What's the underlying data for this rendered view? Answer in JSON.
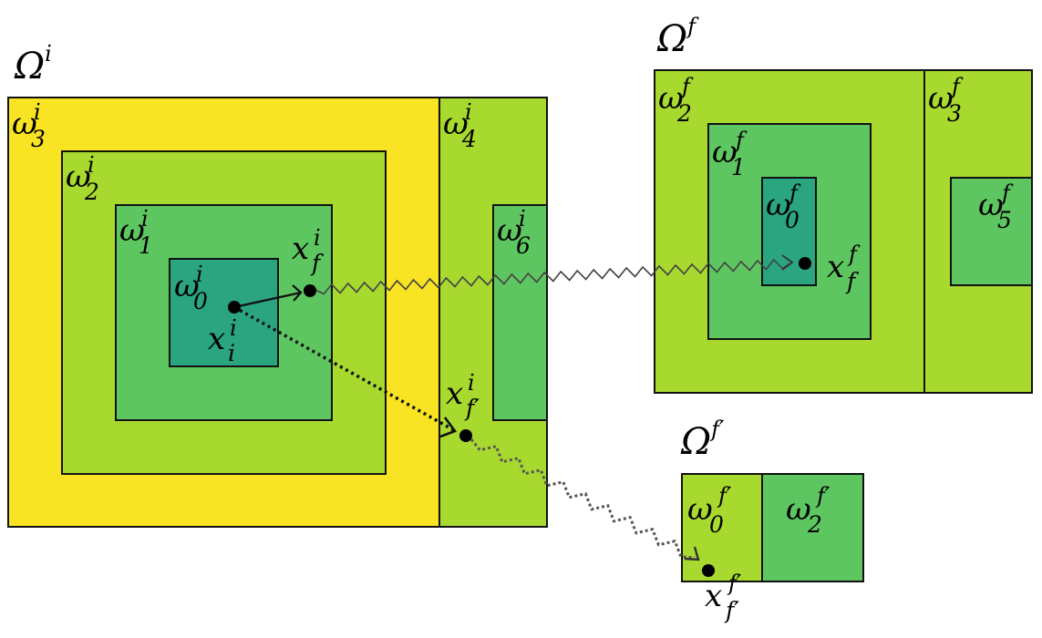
{
  "colors": {
    "yellow": "#f9e424",
    "light_green": "#a8d92f",
    "medium_green": "#5ec661",
    "dark_teal": "#2aa580",
    "dot": "#000000",
    "line": "#111111",
    "wiggle_solid": "#444444",
    "wiggle_dotted": "#555555"
  },
  "labels": {
    "Omega_i": {
      "base": "Ω",
      "sup": "i"
    },
    "omega3_i": {
      "base": "ω",
      "sub": "3",
      "sup": "i"
    },
    "omega2_i": {
      "base": "ω",
      "sub": "2",
      "sup": "i"
    },
    "omega1_i": {
      "base": "ω",
      "sub": "1",
      "sup": "i"
    },
    "omega0_i": {
      "base": "ω",
      "sub": "0",
      "sup": "i"
    },
    "omega4_i": {
      "base": "ω",
      "sub": "4",
      "sup": "i"
    },
    "omega6_i": {
      "base": "ω",
      "sub": "6",
      "sup": "i"
    },
    "x_i_i": {
      "base": "x",
      "sub": "i",
      "sup": "i"
    },
    "x_f_i": {
      "base": "x",
      "sub": "f",
      "sup": "i"
    },
    "x_fp_i": {
      "base": "x",
      "sub": "f′",
      "sup": "i"
    },
    "Omega_f": {
      "base": "Ω",
      "sup": "f"
    },
    "omega2_f": {
      "base": "ω",
      "sub": "2",
      "sup": "f"
    },
    "omega1_f": {
      "base": "ω",
      "sub": "1",
      "sup": "f"
    },
    "omega0_f": {
      "base": "ω",
      "sub": "0",
      "sup": "f"
    },
    "omega3_f": {
      "base": "ω",
      "sub": "3",
      "sup": "f"
    },
    "omega5_f": {
      "base": "ω",
      "sub": "5",
      "sup": "f"
    },
    "x_f_f": {
      "base": "x",
      "sub": "f",
      "sup": "f"
    },
    "Omega_fp": {
      "base": "Ω",
      "sup": "f′"
    },
    "omega0_fp": {
      "base": "ω",
      "sub": "0",
      "sup": "f′"
    },
    "omega2_fp": {
      "base": "ω",
      "sub": "2",
      "sup": "f′"
    },
    "x_fp_fp": {
      "base": "x",
      "sub": "f′",
      "sup": "f′"
    }
  }
}
